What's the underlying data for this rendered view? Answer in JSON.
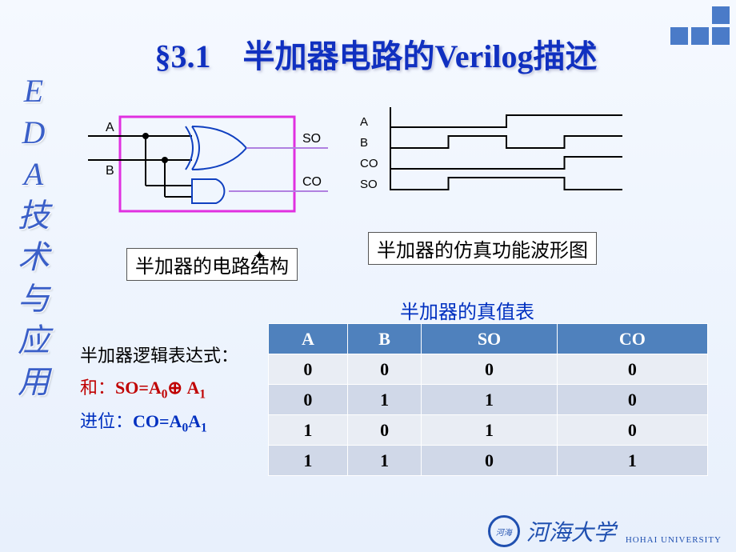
{
  "title": "§3.1　半加器电路的Verilog描述",
  "sidebar": [
    "E",
    "D",
    "A",
    "技",
    "术",
    "与",
    "应",
    "用"
  ],
  "circuit": {
    "inputs": [
      "A",
      "B"
    ],
    "outputs": [
      "SO",
      "CO"
    ],
    "box_color": "#e030e0",
    "wire_color": "#6a0dab",
    "gate_outline": "#1040c0"
  },
  "caption_circuit": "半加器的电路结构",
  "caption_wave": "半加器的仿真功能波形图",
  "wave": {
    "signals": [
      "A",
      "B",
      "CO",
      "SO"
    ],
    "time_slots": 4,
    "levels": {
      "A": [
        0,
        0,
        1,
        1
      ],
      "B": [
        0,
        1,
        0,
        1
      ],
      "CO": [
        0,
        0,
        0,
        1
      ],
      "SO": [
        0,
        1,
        1,
        0
      ]
    },
    "line_color": "#000000"
  },
  "table_title": "半加器的真值表",
  "truth_table": {
    "columns": [
      "A",
      "B",
      "SO",
      "CO"
    ],
    "rows": [
      [
        "0",
        "0",
        "0",
        "0"
      ],
      [
        "0",
        "1",
        "1",
        "0"
      ],
      [
        "1",
        "0",
        "1",
        "0"
      ],
      [
        "1",
        "1",
        "0",
        "1"
      ]
    ],
    "header_bg": "#4f81bd",
    "row_bg_even": "#d0d8e8",
    "row_bg_odd": "#e9edf4"
  },
  "formula": {
    "heading": "半加器逻辑表达式：",
    "sum_label": "和：",
    "sum_expr": "SO=A",
    "sum_sub0": "0",
    "sum_op": "⊕",
    "sum_expr2": "A",
    "sum_sub1": "1",
    "carry_label": "进位：",
    "carry_expr": "CO=A",
    "carry_sub0": "0",
    "carry_expr2": "A",
    "carry_sub1": "1"
  },
  "footer": {
    "name": "河海大学",
    "sub": "HOHAI UNIVERSITY"
  }
}
